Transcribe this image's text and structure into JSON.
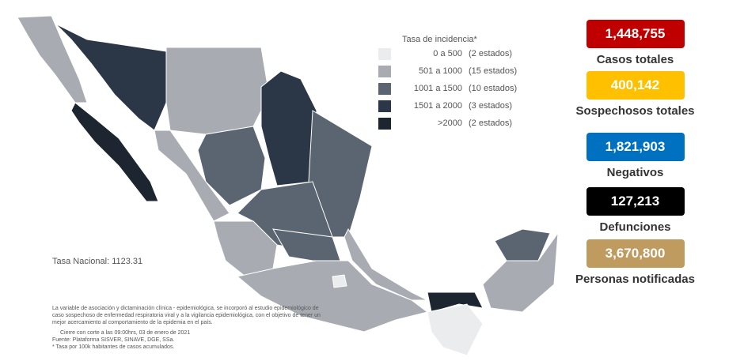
{
  "legend": {
    "title": "Tasa de incidencia*",
    "items": [
      {
        "range": "0 a  500",
        "count": "(2 estados)",
        "color": "#ebecee"
      },
      {
        "range": "501 a  1000",
        "count": "(15 estados)",
        "color": "#a8acb2"
      },
      {
        "range": "1001 a  1500",
        "count": "(10 estados)",
        "color": "#5b6571"
      },
      {
        "range": "1501 a  2000",
        "count": "(3 estados)",
        "color": "#2b3747"
      },
      {
        "range": ">2000",
        "count": "(2 estados)",
        "color": "#1c2530"
      }
    ]
  },
  "national_rate": "Tasa Nacional: 1123.31",
  "notes": {
    "text": "La variable de asociación y dictaminación clínica - epidemiológica, se incorporó al estudio epidemiológico de caso sospechoso de enfermedad respiratoria viral y a la vigilancia epidemiológica, con el objetivo de tener un mejor acercamiento al comportamiento de la epidemia en el país.",
    "cierre": "Cierre con corte a las 09:00hrs, 03 de enero de 2021",
    "fuente": "Fuente: Plataforma SISVER, SINAVE, DGE, SSa.",
    "tasa": "* Tasa por 100k habitantes de casos acumulados."
  },
  "stats": [
    {
      "value": "1,448,755",
      "label": "Casos totales",
      "color": "#c00000"
    },
    {
      "value": "400,142",
      "label": "Sospechosos totales",
      "color": "#ffc000"
    },
    {
      "value": "1,821,903",
      "label": "Negativos",
      "color": "#0070c0"
    },
    {
      "value": "127,213",
      "label": "Defunciones",
      "color": "#000000"
    },
    {
      "value": "3,670,800",
      "label": "Personas notificadas",
      "color": "#bf9b60"
    }
  ]
}
